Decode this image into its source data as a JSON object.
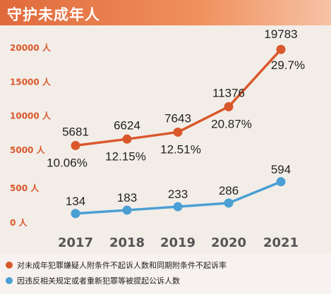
{
  "header": {
    "title": "守护未成年人"
  },
  "colors": {
    "series1": "#d9582b",
    "series2": "#4a9fd4",
    "banner": "#e06a3c"
  },
  "chart_data": {
    "type": "line",
    "categories": [
      "2017",
      "2018",
      "2019",
      "2020",
      "2021"
    ],
    "y_ticks_upper": [
      "20000 人",
      "15000 人",
      "10000 人",
      "5000 人"
    ],
    "y_ticks_lower": [
      "500 人",
      "0 人"
    ],
    "y_ticks_upper_values": [
      20000,
      15000,
      10000,
      5000
    ],
    "y_ticks_lower_values": [
      500,
      0
    ],
    "broken_y_axis": true,
    "ylim_upper": [
      5000,
      20000
    ],
    "ylim_lower": [
      0,
      600
    ],
    "grid": false,
    "series": [
      {
        "name": "对未成年犯罪嫌疑人附条件不起诉人数和同期附条件不起诉率",
        "values": [
          5681,
          6624,
          7643,
          11376,
          19783
        ],
        "labels": [
          "5681",
          "6624",
          "7643",
          "11376",
          "19783"
        ],
        "rates": [
          "10.06%",
          "12.15%",
          "12.51%",
          "20.87%",
          "29.7%"
        ],
        "color": "#d9582b"
      },
      {
        "name": "因违反相关规定或者重新犯罪等被提起公诉人数",
        "values": [
          134,
          183,
          233,
          286,
          594
        ],
        "labels": [
          "134",
          "183",
          "233",
          "286",
          "594"
        ],
        "color": "#4a9fd4"
      }
    ],
    "legend_position": "bottom-left"
  }
}
